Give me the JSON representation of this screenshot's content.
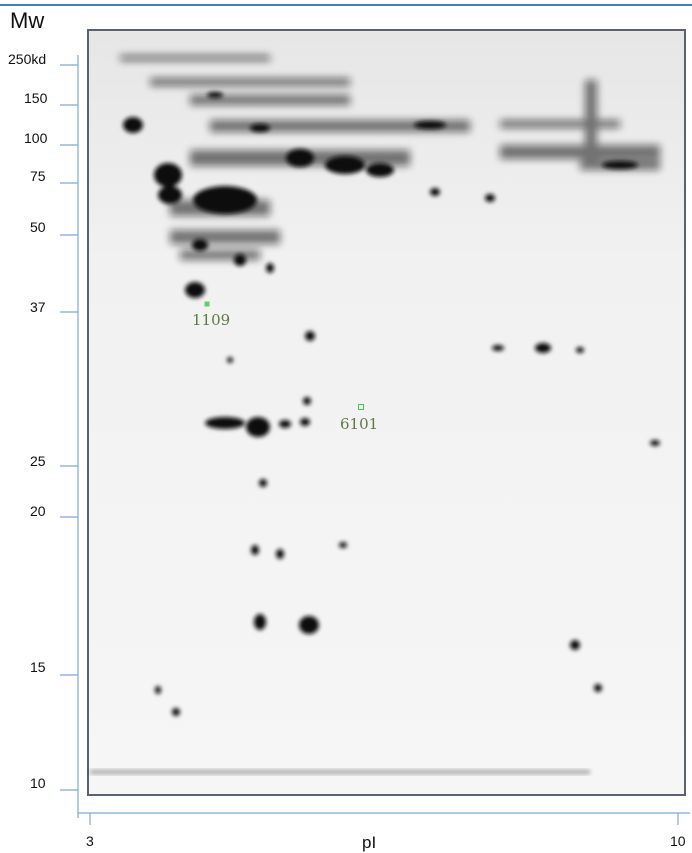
{
  "y_axis": {
    "title": "Mw",
    "ticks": [
      "250kd",
      "150",
      "100",
      "75",
      "50",
      "37",
      "25",
      "20",
      "15",
      "10"
    ]
  },
  "x_axis": {
    "title": "pI",
    "ticks": [
      "3",
      "10"
    ]
  },
  "spots": [
    {
      "label": "1109"
    },
    {
      "label": "6101"
    }
  ]
}
